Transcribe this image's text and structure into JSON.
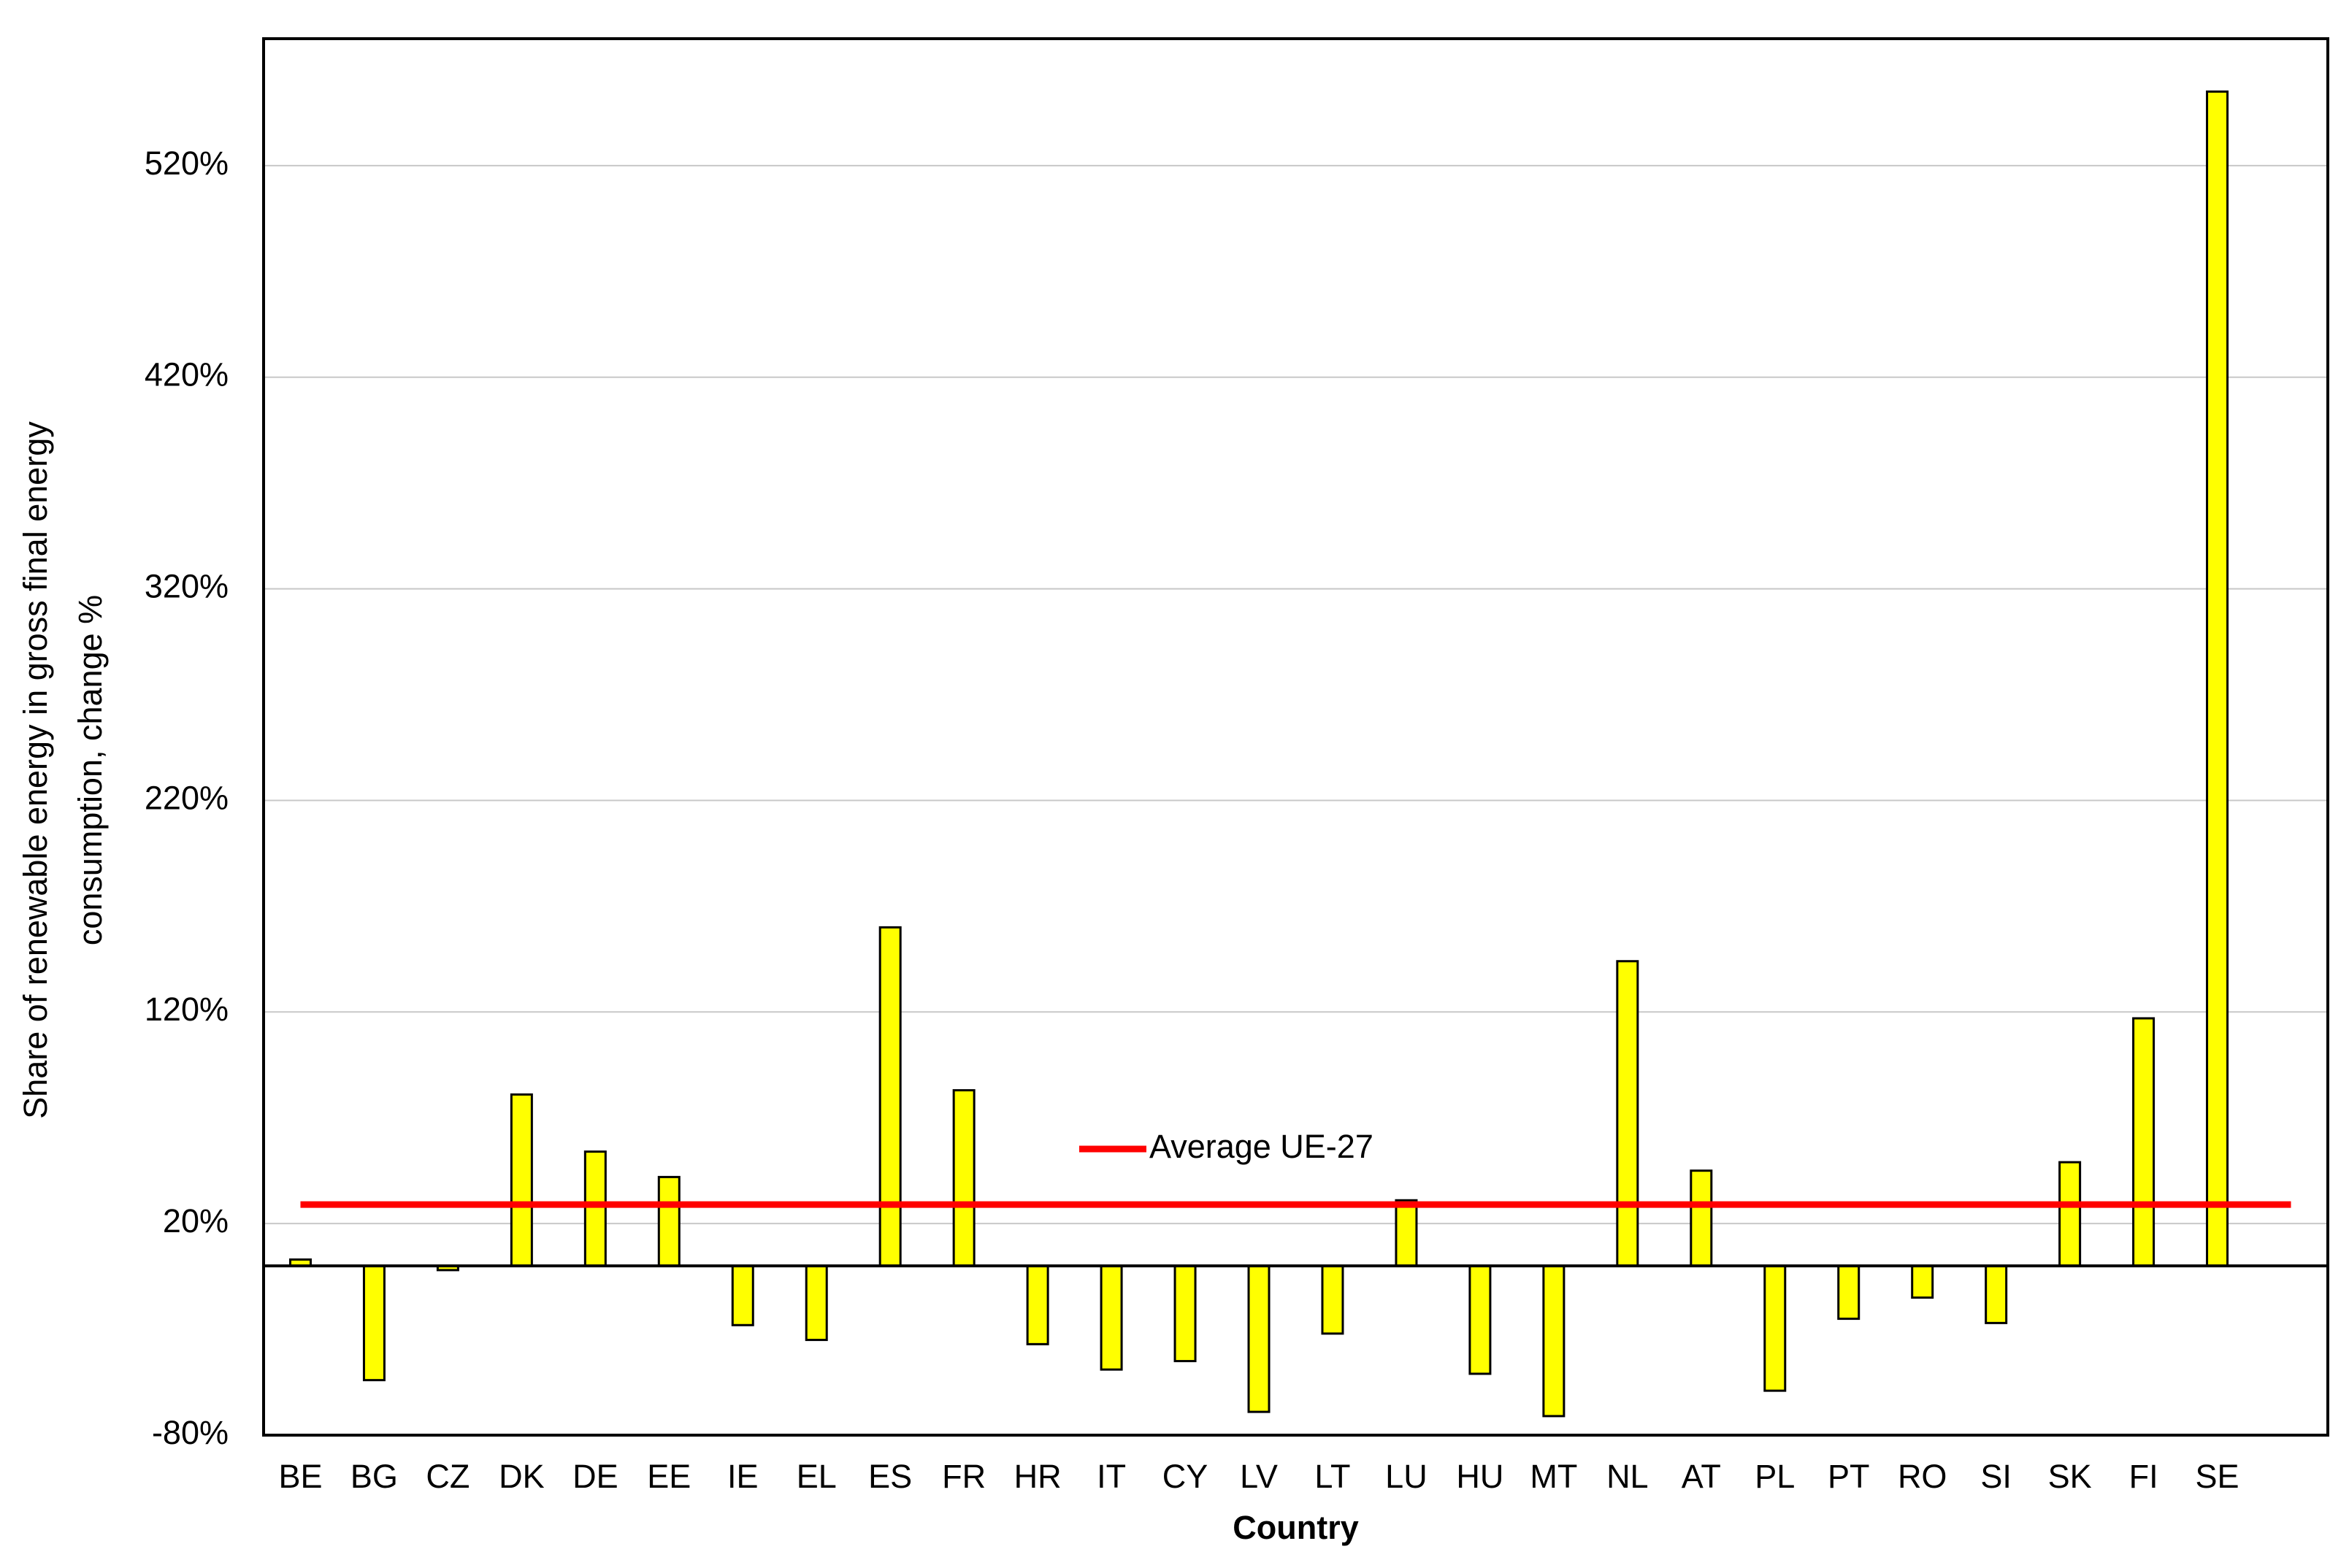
{
  "chart_data": {
    "type": "bar",
    "y_label": [
      "Share of renewable energy in gross final energy",
      "consumption, change %"
    ],
    "x_label": "Country",
    "categories": [
      "BE",
      "BG",
      "CZ",
      "DK",
      "DE",
      "EE",
      "IE",
      "EL",
      "ES",
      "FR",
      "HR",
      "IT",
      "CY",
      "LV",
      "LT",
      "LU",
      "HU",
      "MT",
      "NL",
      "AT",
      "PL",
      "PT",
      "RO",
      "SI",
      "SK",
      "FI",
      "SE"
    ],
    "values": [
      3,
      -54,
      -2,
      81,
      54,
      42,
      -28,
      -35,
      160,
      83,
      -37,
      -49,
      -45,
      -69,
      -32,
      31,
      -51,
      -71,
      144,
      45,
      -59,
      -25,
      -15,
      -27,
      49,
      117,
      555
    ],
    "color": "#ffff00",
    "average": {
      "name": "Average UE-27",
      "value": 29,
      "color": "#ff0000"
    },
    "ylim": [
      -80,
      580
    ],
    "yticks": [
      {
        "value": -80,
        "label": "-80%"
      },
      {
        "value": 20,
        "label": "20%"
      },
      {
        "value": 120,
        "label": "120%"
      },
      {
        "value": 220,
        "label": "220%"
      },
      {
        "value": 320,
        "label": "320%"
      },
      {
        "value": 420,
        "label": "420%"
      },
      {
        "value": 520,
        "label": "520%"
      }
    ],
    "grid": true
  }
}
